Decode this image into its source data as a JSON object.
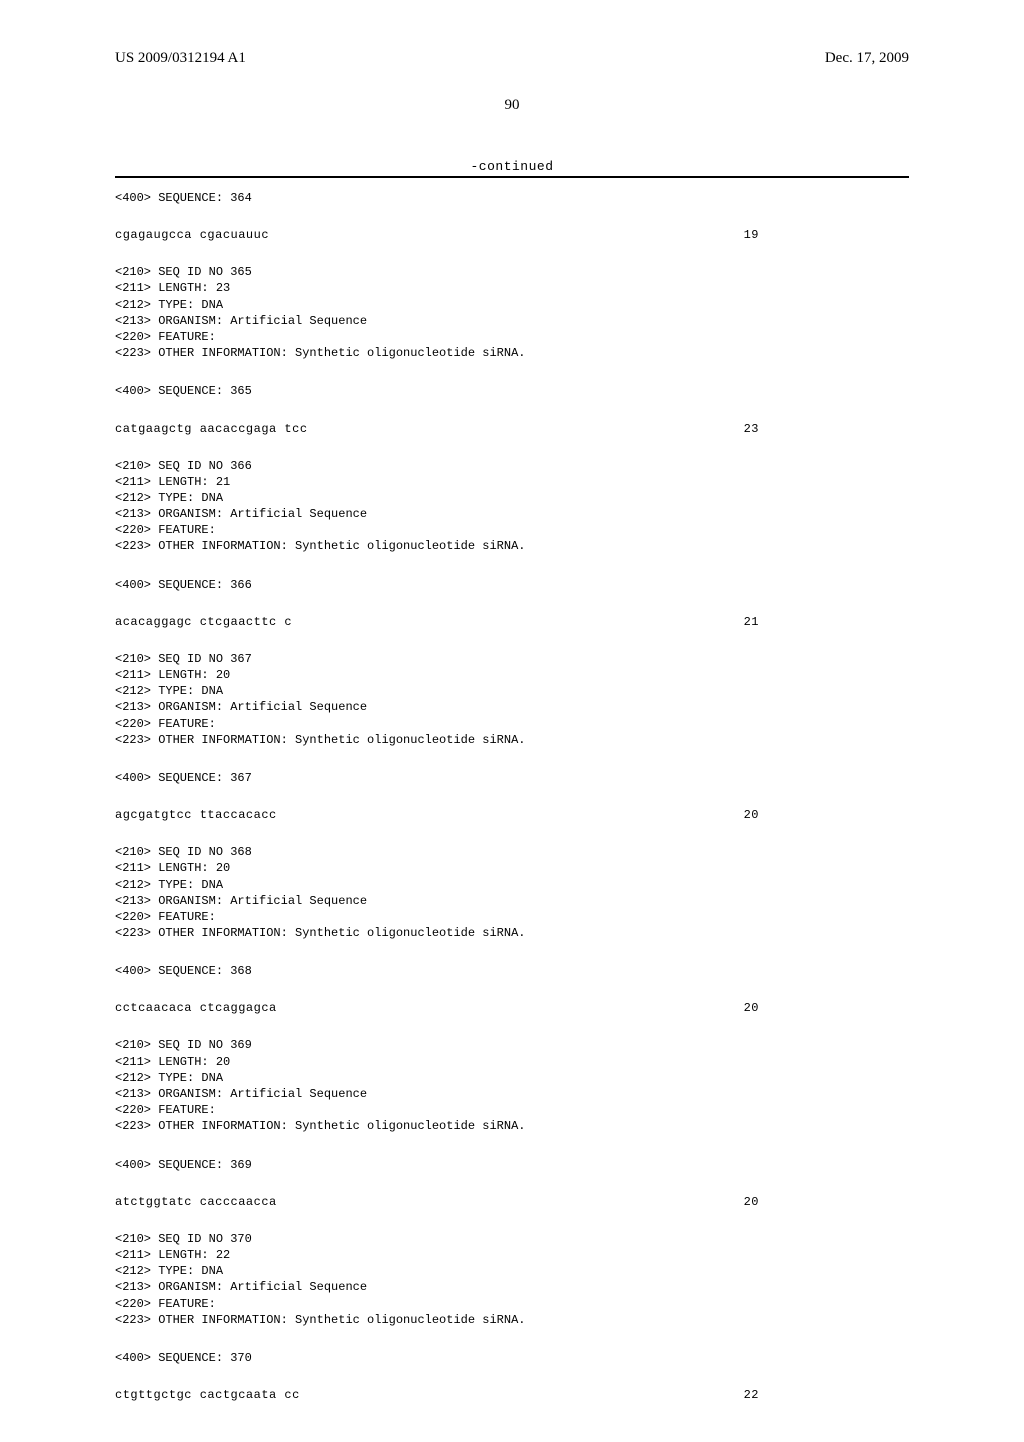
{
  "header": {
    "pub_number": "US 2009/0312194 A1",
    "pub_date": "Dec. 17, 2009"
  },
  "page_number": "90",
  "continued_label": "-continued",
  "entries": [
    {
      "pre": "<400> SEQUENCE: 364",
      "sequence": "cgagaugcca cgacuauuc",
      "length": "19",
      "meta": null
    },
    {
      "meta": "<210> SEQ ID NO 365\n<211> LENGTH: 23\n<212> TYPE: DNA\n<213> ORGANISM: Artificial Sequence\n<220> FEATURE:\n<223> OTHER INFORMATION: Synthetic oligonucleotide siRNA.",
      "pre": "<400> SEQUENCE: 365",
      "sequence": "catgaagctg aacaccgaga tcc",
      "length": "23"
    },
    {
      "meta": "<210> SEQ ID NO 366\n<211> LENGTH: 21\n<212> TYPE: DNA\n<213> ORGANISM: Artificial Sequence\n<220> FEATURE:\n<223> OTHER INFORMATION: Synthetic oligonucleotide siRNA.",
      "pre": "<400> SEQUENCE: 366",
      "sequence": "acacaggagc ctcgaacttc c",
      "length": "21"
    },
    {
      "meta": "<210> SEQ ID NO 367\n<211> LENGTH: 20\n<212> TYPE: DNA\n<213> ORGANISM: Artificial Sequence\n<220> FEATURE:\n<223> OTHER INFORMATION: Synthetic oligonucleotide siRNA.",
      "pre": "<400> SEQUENCE: 367",
      "sequence": "agcgatgtcc ttaccacacc",
      "length": "20"
    },
    {
      "meta": "<210> SEQ ID NO 368\n<211> LENGTH: 20\n<212> TYPE: DNA\n<213> ORGANISM: Artificial Sequence\n<220> FEATURE:\n<223> OTHER INFORMATION: Synthetic oligonucleotide siRNA.",
      "pre": "<400> SEQUENCE: 368",
      "sequence": "cctcaacaca ctcaggagca",
      "length": "20"
    },
    {
      "meta": "<210> SEQ ID NO 369\n<211> LENGTH: 20\n<212> TYPE: DNA\n<213> ORGANISM: Artificial Sequence\n<220> FEATURE:\n<223> OTHER INFORMATION: Synthetic oligonucleotide siRNA.",
      "pre": "<400> SEQUENCE: 369",
      "sequence": "atctggtatc cacccaacca",
      "length": "20"
    },
    {
      "meta": "<210> SEQ ID NO 370\n<211> LENGTH: 22\n<212> TYPE: DNA\n<213> ORGANISM: Artificial Sequence\n<220> FEATURE:\n<223> OTHER INFORMATION: Synthetic oligonucleotide siRNA.",
      "pre": "<400> SEQUENCE: 370",
      "sequence": "ctgttgctgc cactgcaata cc",
      "length": "22"
    }
  ]
}
